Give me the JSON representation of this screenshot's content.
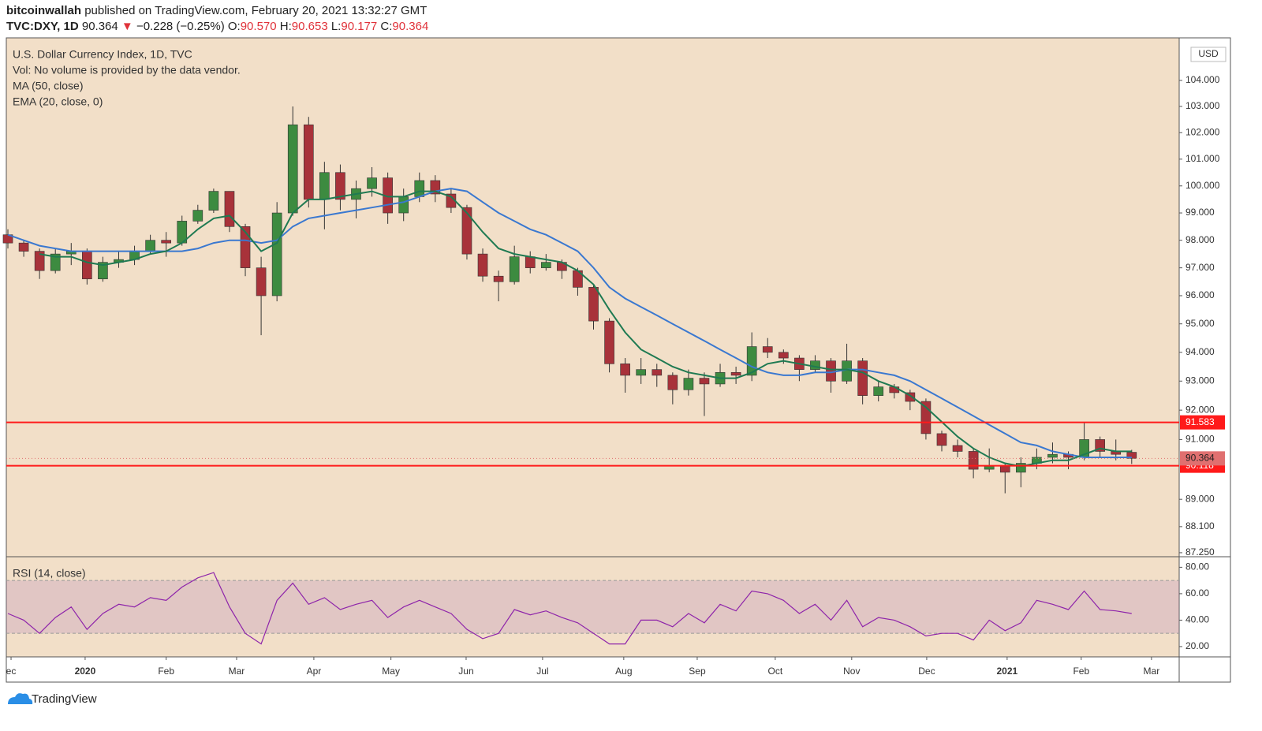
{
  "header": {
    "publisher": "bitcoinwallah",
    "published": "published on TradingView.com, February 20, 2021 13:32:27 GMT",
    "symbol": "TVC:DXY, 1D",
    "last": "90.364",
    "arrow": "▼",
    "change": "−0.228 (−0.25%)",
    "ohlc": [
      {
        "label": "O:",
        "value": "90.570"
      },
      {
        "label": "H:",
        "value": "90.653"
      },
      {
        "label": "L:",
        "value": "90.177"
      },
      {
        "label": "C:",
        "value": "90.364"
      }
    ]
  },
  "footer": {
    "brand": "TradingView"
  },
  "chart_data": [
    {
      "type": "candlestick",
      "title": "U.S. Dollar Currency Index, 1D, TVC",
      "subtitle": "Vol: No volume is provided by the data vendor.",
      "currency": "USD",
      "log": true,
      "up_color": "#3d8b40",
      "down_color": "#a8323a",
      "open": [
        98.2,
        97.9,
        97.6,
        96.9,
        97.5,
        97.6,
        96.6,
        97.2,
        97.3,
        97.6,
        98.0,
        97.9,
        98.7,
        99.1,
        99.8,
        98.5,
        97.0,
        96.0,
        99.0,
        102.3,
        99.5,
        100.5,
        99.5,
        99.9,
        100.3,
        99.0,
        99.6,
        100.2,
        99.7,
        99.2,
        97.5,
        96.7,
        96.5,
        97.4,
        97.0,
        97.2,
        96.9,
        96.3,
        95.1,
        93.6,
        93.2,
        93.4,
        93.2,
        92.7,
        93.1,
        92.9,
        93.3,
        93.2,
        94.2,
        94.0,
        93.8,
        93.4,
        93.7,
        93.0,
        93.7,
        92.5,
        92.8,
        92.6,
        92.3,
        91.2,
        90.8,
        90.6,
        90.0,
        90.1,
        89.9,
        90.2,
        90.4,
        90.5,
        90.4,
        91.0,
        90.6,
        90.57
      ],
      "high": [
        98.4,
        98.0,
        97.7,
        97.7,
        97.9,
        97.7,
        97.4,
        97.6,
        97.8,
        98.2,
        98.3,
        98.9,
        99.3,
        99.9,
        99.8,
        98.6,
        97.4,
        99.4,
        103.0,
        102.6,
        100.9,
        100.8,
        100.2,
        100.7,
        100.5,
        99.9,
        100.5,
        100.4,
        99.9,
        99.3,
        97.7,
        96.9,
        97.8,
        97.6,
        97.5,
        97.3,
        97.0,
        96.4,
        95.2,
        93.8,
        93.8,
        93.6,
        93.3,
        93.4,
        93.3,
        93.6,
        93.5,
        94.7,
        94.5,
        94.1,
        93.9,
        93.9,
        93.8,
        94.3,
        93.8,
        93.0,
        92.9,
        92.7,
        92.4,
        91.3,
        91.0,
        90.7,
        90.7,
        90.2,
        90.4,
        90.7,
        90.9,
        90.6,
        91.6,
        91.1,
        91.0,
        90.653
      ],
      "low": [
        97.7,
        97.4,
        96.6,
        96.8,
        97.1,
        96.4,
        96.5,
        97.0,
        97.1,
        97.5,
        97.4,
        97.8,
        98.6,
        99.0,
        98.3,
        96.7,
        94.6,
        95.8,
        98.9,
        99.2,
        98.4,
        99.1,
        98.8,
        99.6,
        98.6,
        98.7,
        99.4,
        99.4,
        99.0,
        97.3,
        96.5,
        95.8,
        96.4,
        96.8,
        96.9,
        96.6,
        96.0,
        94.8,
        93.3,
        92.6,
        92.9,
        92.8,
        92.2,
        92.5,
        91.8,
        92.8,
        92.9,
        93.0,
        93.8,
        93.6,
        93.0,
        93.3,
        92.6,
        92.9,
        92.2,
        92.3,
        92.4,
        92.0,
        91.0,
        90.6,
        90.4,
        89.7,
        89.9,
        89.2,
        89.4,
        90.0,
        90.2,
        90.0,
        90.3,
        90.4,
        90.3,
        90.177
      ],
      "close": [
        97.9,
        97.6,
        96.9,
        97.5,
        97.6,
        96.6,
        97.2,
        97.3,
        97.6,
        98.0,
        97.9,
        98.7,
        99.1,
        99.8,
        98.5,
        97.0,
        96.0,
        99.0,
        102.3,
        99.5,
        100.5,
        99.5,
        99.9,
        100.3,
        99.0,
        99.6,
        100.2,
        99.7,
        99.2,
        97.5,
        96.7,
        96.5,
        97.4,
        97.0,
        97.2,
        96.9,
        96.3,
        95.1,
        93.6,
        93.2,
        93.4,
        93.2,
        92.7,
        93.1,
        92.9,
        93.3,
        93.2,
        94.2,
        94.0,
        93.8,
        93.4,
        93.7,
        93.0,
        93.7,
        92.5,
        92.8,
        92.6,
        92.3,
        91.2,
        90.8,
        90.6,
        90.0,
        90.1,
        89.9,
        90.2,
        90.4,
        90.5,
        90.4,
        91.0,
        90.6,
        90.5,
        90.364
      ],
      "series": [
        {
          "name": "MA (50, close)",
          "color": "#3a78d0",
          "values": [
            98.2,
            98.0,
            97.8,
            97.7,
            97.6,
            97.6,
            97.6,
            97.6,
            97.6,
            97.6,
            97.6,
            97.6,
            97.7,
            97.9,
            98.0,
            98.0,
            97.9,
            98.0,
            98.5,
            98.8,
            98.9,
            99.0,
            99.1,
            99.2,
            99.3,
            99.4,
            99.6,
            99.8,
            99.9,
            99.8,
            99.4,
            99.0,
            98.7,
            98.4,
            98.2,
            97.9,
            97.6,
            97.0,
            96.3,
            95.9,
            95.6,
            95.3,
            95.0,
            94.7,
            94.4,
            94.1,
            93.8,
            93.5,
            93.3,
            93.2,
            93.2,
            93.3,
            93.3,
            93.4,
            93.4,
            93.3,
            93.2,
            93.0,
            92.7,
            92.4,
            92.1,
            91.8,
            91.5,
            91.2,
            90.9,
            90.8,
            90.6,
            90.5,
            90.4,
            90.4,
            90.4,
            90.4
          ]
        },
        {
          "name": "EMA (20, close, 0)",
          "color": "#1f7a52",
          "values": [
            null,
            null,
            97.5,
            97.4,
            97.4,
            97.2,
            97.1,
            97.2,
            97.3,
            97.5,
            97.6,
            97.9,
            98.4,
            98.8,
            98.9,
            98.3,
            97.6,
            97.9,
            99.0,
            99.5,
            99.5,
            99.6,
            99.7,
            99.8,
            99.6,
            99.6,
            99.8,
            99.8,
            99.6,
            99.0,
            98.3,
            97.7,
            97.5,
            97.4,
            97.3,
            97.2,
            96.9,
            96.4,
            95.5,
            94.7,
            94.1,
            93.8,
            93.5,
            93.3,
            93.2,
            93.1,
            93.1,
            93.3,
            93.6,
            93.7,
            93.6,
            93.5,
            93.4,
            93.4,
            93.3,
            93.0,
            92.8,
            92.5,
            92.1,
            91.6,
            91.1,
            90.7,
            90.4,
            90.2,
            90.1,
            90.2,
            90.3,
            90.3,
            90.5,
            90.7,
            90.6,
            90.6
          ]
        }
      ],
      "hlines": [
        {
          "value": 91.583,
          "color": "#ff1a1a"
        },
        {
          "value": 90.118,
          "color": "#ff1a1a"
        }
      ],
      "last_color": "#e07070",
      "xlim": [
        -0.1,
        74
      ],
      "xticks": [
        {
          "value": 0.2,
          "label": "ec"
        },
        {
          "value": 4.88,
          "label": "2020"
        },
        {
          "value": 10.0,
          "label": "Feb"
        },
        {
          "value": 14.45,
          "label": "Mar"
        },
        {
          "value": 19.33,
          "label": "Apr"
        },
        {
          "value": 24.2,
          "label": "May"
        },
        {
          "value": 28.95,
          "label": "Jun"
        },
        {
          "value": 33.78,
          "label": "Jul"
        },
        {
          "value": 38.91,
          "label": "Aug"
        },
        {
          "value": 43.55,
          "label": "Sep"
        },
        {
          "value": 48.48,
          "label": "Oct"
        },
        {
          "value": 53.31,
          "label": "Nov"
        },
        {
          "value": 58.05,
          "label": "Dec"
        },
        {
          "value": 63.13,
          "label": "2021"
        },
        {
          "value": 67.81,
          "label": "Feb"
        },
        {
          "value": 72.25,
          "label": "Mar"
        }
      ],
      "ylim": [
        87.12,
        105.66
      ],
      "yticks": [
        {
          "value": 104,
          "label": "104.000"
        },
        {
          "value": 103,
          "label": "103.000"
        },
        {
          "value": 102,
          "label": "102.000"
        },
        {
          "value": 101,
          "label": "101.000"
        },
        {
          "value": 100,
          "label": "100.000"
        },
        {
          "value": 99,
          "label": "99.000"
        },
        {
          "value": 98,
          "label": "98.000"
        },
        {
          "value": 97,
          "label": "97.000"
        },
        {
          "value": 96,
          "label": "96.000"
        },
        {
          "value": 95,
          "label": "95.000"
        },
        {
          "value": 94,
          "label": "94.000"
        },
        {
          "value": 93,
          "label": "93.000"
        },
        {
          "value": 92,
          "label": "92.000"
        },
        {
          "value": 91,
          "label": "91.000"
        },
        {
          "value": 89,
          "label": "89.000"
        },
        {
          "value": 88.1,
          "label": "88.100"
        },
        {
          "value": 87.25,
          "label": "87.250"
        }
      ]
    },
    {
      "type": "line",
      "title": "RSI (14, close)",
      "log": false,
      "series": [
        {
          "color": "#8e24aa",
          "values": [
            45,
            40,
            30,
            42,
            50,
            33,
            45,
            52,
            50,
            57,
            55,
            65,
            72,
            76,
            50,
            30,
            22,
            55,
            68,
            52,
            57,
            48,
            52,
            55,
            42,
            50,
            55,
            50,
            45,
            33,
            26,
            30,
            48,
            44,
            47,
            42,
            38,
            30,
            22,
            22,
            40,
            40,
            35,
            45,
            38,
            52,
            47,
            62,
            60,
            55,
            45,
            52,
            40,
            55,
            35,
            42,
            40,
            35,
            28,
            30,
            30,
            25,
            40,
            32,
            38,
            55,
            52,
            48,
            62,
            48,
            47,
            45
          ]
        }
      ],
      "band": [
        30,
        70
      ],
      "band_color": "#b07ab8",
      "ylim": [
        14,
        84.4
      ],
      "yticks": [
        {
          "value": 80,
          "label": "80.00"
        },
        {
          "value": 60,
          "label": "60.00"
        },
        {
          "value": 40,
          "label": "40.00"
        },
        {
          "value": 20,
          "label": "20.00"
        }
      ]
    }
  ]
}
